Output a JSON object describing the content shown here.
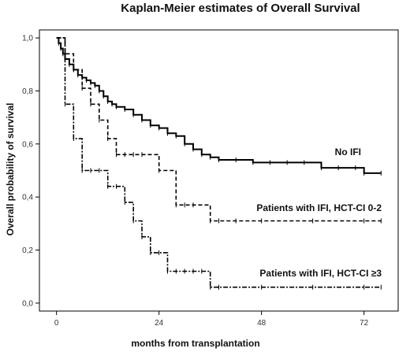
{
  "chart_data": {
    "type": "line",
    "title": "Kaplan-Meier estimates of Overall Survival",
    "xlabel": "months from transplantation",
    "ylabel": "Overall probability of survival",
    "xlim": [
      -4,
      80
    ],
    "ylim": [
      -0.03,
      1.03
    ],
    "xticks": [
      0,
      24,
      48,
      72
    ],
    "xtick_labels": [
      "0",
      "24",
      "48",
      "72"
    ],
    "yticks": [
      0,
      0.2,
      0.4,
      0.6,
      0.8,
      1.0
    ],
    "ytick_labels": [
      "0,0",
      "0,2",
      "0,4",
      "0,6",
      "0,8",
      "1,0"
    ],
    "grid": false,
    "series": [
      {
        "name": "No IFI",
        "style": "solid",
        "color": "#000000",
        "x": [
          0,
          0.5,
          1,
          1.5,
          2,
          3,
          4,
          5,
          6,
          7,
          8,
          9,
          10,
          11,
          12,
          13,
          14,
          16,
          18,
          20,
          22,
          24,
          26,
          28,
          30,
          32,
          34,
          36,
          38,
          42,
          46,
          50,
          54,
          58,
          62,
          66,
          70,
          72,
          76
        ],
        "y": [
          1.0,
          0.98,
          0.96,
          0.94,
          0.92,
          0.9,
          0.88,
          0.86,
          0.85,
          0.84,
          0.83,
          0.82,
          0.8,
          0.78,
          0.76,
          0.75,
          0.74,
          0.73,
          0.71,
          0.69,
          0.67,
          0.66,
          0.64,
          0.63,
          0.6,
          0.58,
          0.56,
          0.55,
          0.54,
          0.54,
          0.53,
          0.53,
          0.53,
          0.53,
          0.51,
          0.51,
          0.51,
          0.49,
          0.49
        ]
      },
      {
        "name": "Patients with IFI, HCT-CI 0-2",
        "style": "dashed",
        "color": "#000000",
        "x": [
          0,
          2,
          4,
          6,
          8,
          10,
          12,
          14,
          16,
          18,
          20,
          24,
          28,
          30,
          32,
          36,
          38,
          42,
          48,
          60,
          72,
          76
        ],
        "y": [
          1.0,
          0.94,
          0.88,
          0.81,
          0.75,
          0.69,
          0.62,
          0.56,
          0.56,
          0.56,
          0.56,
          0.5,
          0.37,
          0.37,
          0.37,
          0.31,
          0.31,
          0.31,
          0.31,
          0.31,
          0.31,
          0.31
        ]
      },
      {
        "name": "Patients with IFI, HCT-CI ≥3",
        "style": "dashdot",
        "color": "#000000",
        "x": [
          0,
          2,
          4,
          6,
          8,
          10,
          12,
          14,
          16,
          18,
          20,
          22,
          24,
          26,
          28,
          30,
          32,
          34,
          36,
          38,
          48,
          60,
          72,
          76
        ],
        "y": [
          1.0,
          0.75,
          0.62,
          0.5,
          0.5,
          0.5,
          0.44,
          0.44,
          0.38,
          0.31,
          0.25,
          0.19,
          0.19,
          0.12,
          0.12,
          0.12,
          0.12,
          0.12,
          0.06,
          0.06,
          0.06,
          0.06,
          0.06,
          0.06
        ]
      }
    ],
    "annotations": [
      {
        "text": "No IFI",
        "series": 0
      },
      {
        "text": "Patients with IFI, HCT-CI 0-2",
        "series": 1
      },
      {
        "text": "Patients with IFI, HCT-CI ≥3",
        "series": 2
      }
    ]
  }
}
